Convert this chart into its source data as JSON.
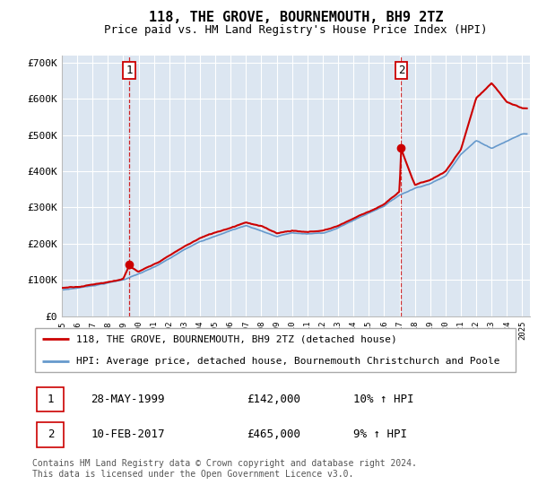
{
  "title": "118, THE GROVE, BOURNEMOUTH, BH9 2TZ",
  "subtitle": "Price paid vs. HM Land Registry's House Price Index (HPI)",
  "ylim": [
    0,
    720000
  ],
  "xlim_start": 1995.0,
  "xlim_end": 2025.5,
  "yticks": [
    0,
    100000,
    200000,
    300000,
    400000,
    500000,
    600000,
    700000
  ],
  "ytick_labels": [
    "£0",
    "£100K",
    "£200K",
    "£300K",
    "£400K",
    "£500K",
    "£600K",
    "£700K"
  ],
  "xticks": [
    1995,
    1996,
    1997,
    1998,
    1999,
    2000,
    2001,
    2002,
    2003,
    2004,
    2005,
    2006,
    2007,
    2008,
    2009,
    2010,
    2011,
    2012,
    2013,
    2014,
    2015,
    2016,
    2017,
    2018,
    2019,
    2020,
    2021,
    2022,
    2023,
    2024,
    2025
  ],
  "plot_bg": "#dce6f1",
  "grid_color": "#ffffff",
  "sale1_x": 1999.38,
  "sale1_y": 142000,
  "sale2_x": 2017.11,
  "sale2_y": 465000,
  "sale1_label": "1",
  "sale2_label": "2",
  "red_color": "#cc0000",
  "blue_color": "#6699cc",
  "legend_line1": "118, THE GROVE, BOURNEMOUTH, BH9 2TZ (detached house)",
  "legend_line2": "HPI: Average price, detached house, Bournemouth Christchurch and Poole",
  "table_row1": [
    "1",
    "28-MAY-1999",
    "£142,000",
    "10% ↑ HPI"
  ],
  "table_row2": [
    "2",
    "10-FEB-2017",
    "£465,000",
    "9% ↑ HPI"
  ],
  "footer": "Contains HM Land Registry data © Crown copyright and database right 2024.\nThis data is licensed under the Open Government Licence v3.0.",
  "title_fontsize": 11,
  "subtitle_fontsize": 9
}
